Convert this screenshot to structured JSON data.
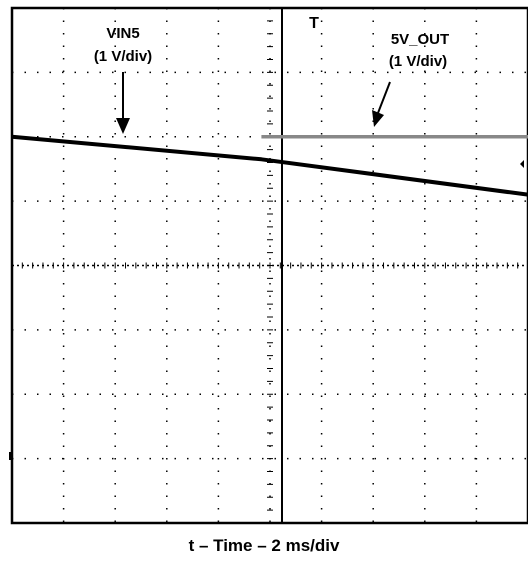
{
  "chart_data": {
    "type": "line",
    "xlabel": "t – Time – 2 ms/div",
    "ylabel": "",
    "grid": true,
    "divisions": {
      "x": 10,
      "y": 8
    },
    "xlim": [
      -10,
      8
    ],
    "ylim": [
      -4,
      4
    ],
    "x_units": "ms",
    "trigger_marker": "T",
    "series": [
      {
        "name": "VIN5",
        "scale": "(1 V/div)",
        "color": "#000000",
        "points": [
          [
            -10,
            2.0
          ],
          [
            -1.3,
            1.65
          ],
          [
            8,
            1.1
          ]
        ]
      },
      {
        "name": "5V_OUT",
        "scale": "(1 V/div)",
        "color": "#888888",
        "points": [
          [
            -1.3,
            2.0
          ],
          [
            8,
            2.0
          ]
        ]
      }
    ],
    "annotations": [
      {
        "target": "VIN5",
        "line1": "VIN5",
        "line2": "(1 V/div)"
      },
      {
        "target": "5V_OUT",
        "line1": "5V_OUT",
        "line2": "(1 V/div)"
      }
    ]
  }
}
